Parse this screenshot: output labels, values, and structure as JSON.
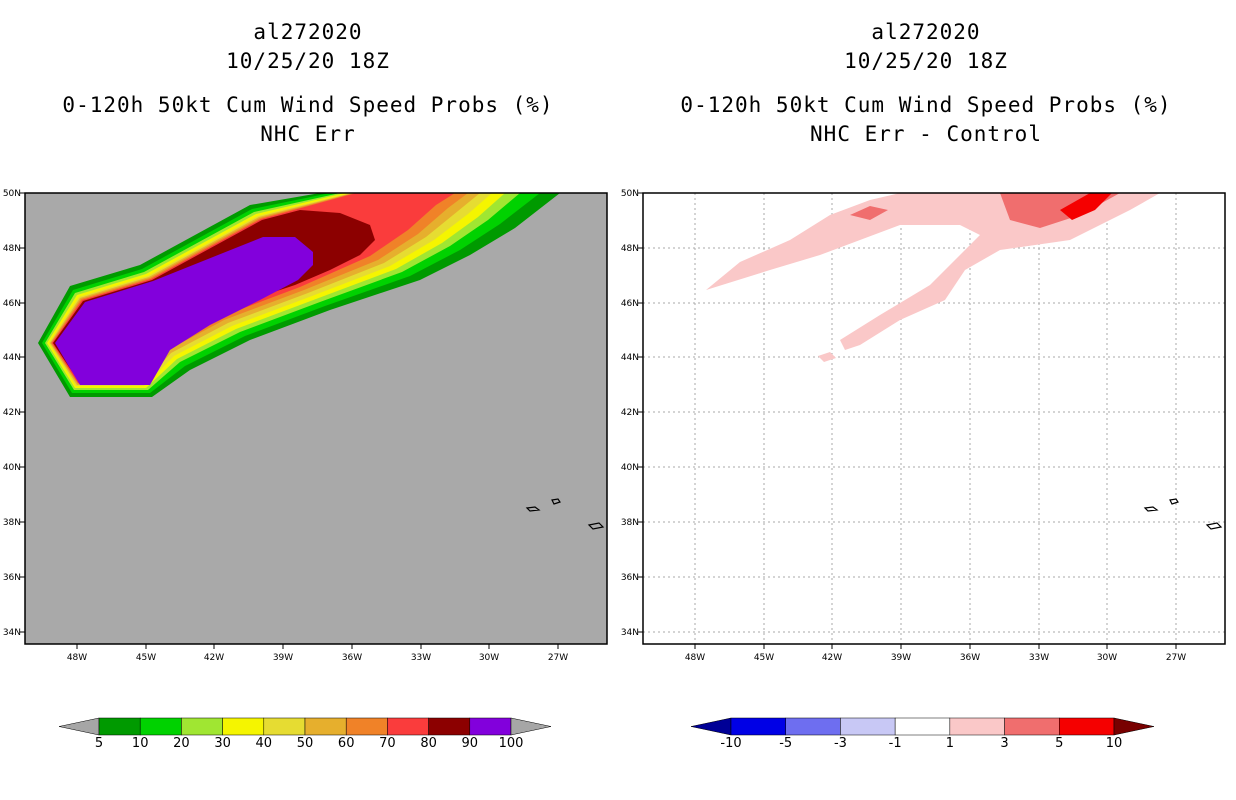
{
  "left": {
    "title": {
      "storm": "al272020",
      "date": "10/25/20 18Z",
      "product": "0-120h 50kt Cum Wind Speed Probs (%)",
      "sub": "NHC Err"
    },
    "x_ticks": [
      "48W",
      "45W",
      "42W",
      "39W",
      "36W",
      "33W",
      "30W",
      "27W"
    ],
    "y_ticks": [
      "50N",
      "48N",
      "46N",
      "44N",
      "42N",
      "40N",
      "38N",
      "36N",
      "34N"
    ],
    "colorbar": {
      "labels": [
        "5",
        "10",
        "20",
        "30",
        "40",
        "50",
        "60",
        "70",
        "80",
        "90",
        "100"
      ],
      "colors": [
        "#009a00",
        "#00d200",
        "#a0e632",
        "#f5f500",
        "#e6dc32",
        "#e6af2d",
        "#f08228",
        "#fa3c3c",
        "#8c0000",
        "#8200dc"
      ],
      "under_color": "#a6a6a6",
      "over_color": "#a6a6a6"
    },
    "background_color": "#a9a9a9"
  },
  "right": {
    "title": {
      "storm": "al272020",
      "date": "10/25/20 18Z",
      "product": "0-120h 50kt Cum Wind Speed Probs (%)",
      "sub": "NHC Err - Control"
    },
    "x_ticks": [
      "48W",
      "45W",
      "42W",
      "39W",
      "36W",
      "33W",
      "30W",
      "27W"
    ],
    "y_ticks": [
      "50N",
      "48N",
      "46N",
      "44N",
      "42N",
      "40N",
      "38N",
      "36N",
      "34N"
    ],
    "colorbar": {
      "labels": [
        "-10",
        "-5",
        "-3",
        "-1",
        "1",
        "3",
        "5",
        "10"
      ],
      "colors": [
        "#0000e6",
        "#6e6ef0",
        "#c8c8f5",
        "#ffffff",
        "#fac8c8",
        "#f06e6e",
        "#f50000"
      ],
      "under_color": "#000096",
      "over_color": "#780000"
    },
    "background_color": "#ffffff"
  }
}
